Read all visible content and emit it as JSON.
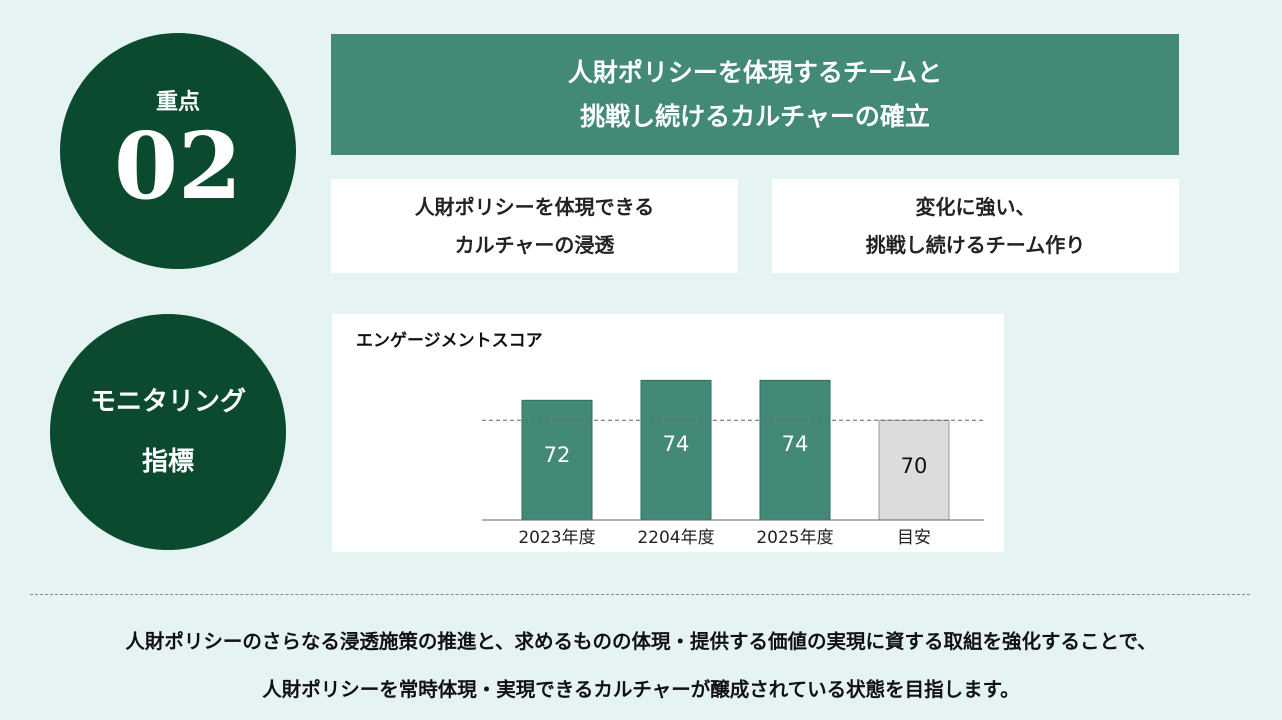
{
  "focus": {
    "label": "重点",
    "number": "02"
  },
  "banner": {
    "line1": "人財ポリシーを体現するチームと",
    "line2": "挑戦し続けるカルチャーの確立"
  },
  "cards": [
    {
      "line1": "人財ポリシーを体現できる",
      "line2": "カルチャーの浸透"
    },
    {
      "line1": "変化に強い、",
      "line2": "挑戦し続けるチーム作り"
    }
  ],
  "monitoring": {
    "line1": "モニタリング",
    "line2": "指標"
  },
  "colors": {
    "dark_green": "#0b4a2f",
    "accent_green": "#428a77",
    "target_gray": "#dcdcdc",
    "background": "#e6f3f3"
  },
  "chart_data": {
    "type": "bar",
    "title": "エンゲージメントスコア",
    "categories": [
      "2023年度",
      "2204年度",
      "2025年度",
      "目安"
    ],
    "values": [
      72,
      74,
      74,
      70
    ],
    "value_labels": [
      "72",
      "74",
      "74",
      "70"
    ],
    "bar_colors": [
      "#428a77",
      "#428a77",
      "#428a77",
      "#dcdcdc"
    ],
    "reference_line": 70,
    "ylim": [
      60,
      75
    ]
  },
  "summary": {
    "line1": "人財ポリシーのさらなる浸透施策の推進と、求めるものの体現・提供する価値の実現に資する取組を強化することで、",
    "line2": "人財ポリシーを常時体現・実現できるカルチャーが醸成されている状態を目指します。"
  }
}
